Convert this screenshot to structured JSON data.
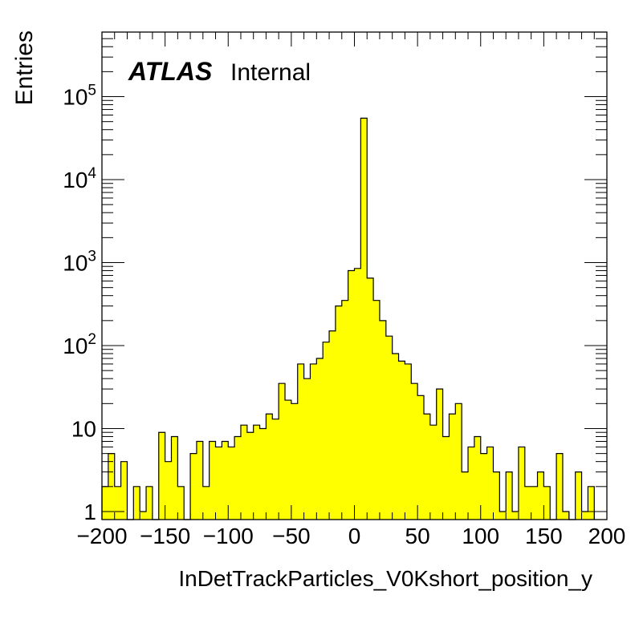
{
  "chart_data": {
    "type": "bar",
    "style": "histogram",
    "xlabel": "InDetTrackParticles_V0Kshort_position_y",
    "ylabel": "Entries",
    "annotation": {
      "experiment": "ATLAS",
      "status": "Internal"
    },
    "xlim": [
      -200,
      200
    ],
    "ylim": [
      0.8,
      600000
    ],
    "yscale": "log",
    "bin_width": 5,
    "x_ticks": [
      "−200",
      "−150",
      "−100",
      "−50",
      "0",
      "50",
      "100",
      "150",
      "200"
    ],
    "y_ticks": [
      {
        "value": 1,
        "base": "1",
        "exp": ""
      },
      {
        "value": 10,
        "base": "10",
        "exp": ""
      },
      {
        "value": 100,
        "base": "10",
        "exp": "2"
      },
      {
        "value": 1000,
        "base": "10",
        "exp": "3"
      },
      {
        "value": 10000,
        "base": "10",
        "exp": "4"
      },
      {
        "value": 100000,
        "base": "10",
        "exp": "5"
      }
    ],
    "colors": {
      "fill": "#ffff00",
      "line": "#000000"
    },
    "bin_edges_start": -200,
    "values": [
      2,
      5,
      2,
      4,
      0,
      2,
      1,
      2,
      0,
      9,
      4,
      8,
      2,
      0,
      5,
      7,
      2,
      7,
      6,
      7,
      6,
      8,
      11,
      9,
      11,
      10,
      15,
      13,
      35,
      22,
      20,
      60,
      40,
      60,
      70,
      110,
      150,
      300,
      350,
      800,
      850,
      55000,
      650,
      350,
      200,
      130,
      80,
      65,
      60,
      35,
      25,
      15,
      11,
      30,
      8,
      15,
      20,
      3,
      6,
      8,
      5,
      6,
      3,
      1,
      3,
      1,
      6,
      2,
      2,
      3,
      2,
      0,
      5,
      1,
      0,
      3,
      1,
      2
    ]
  }
}
